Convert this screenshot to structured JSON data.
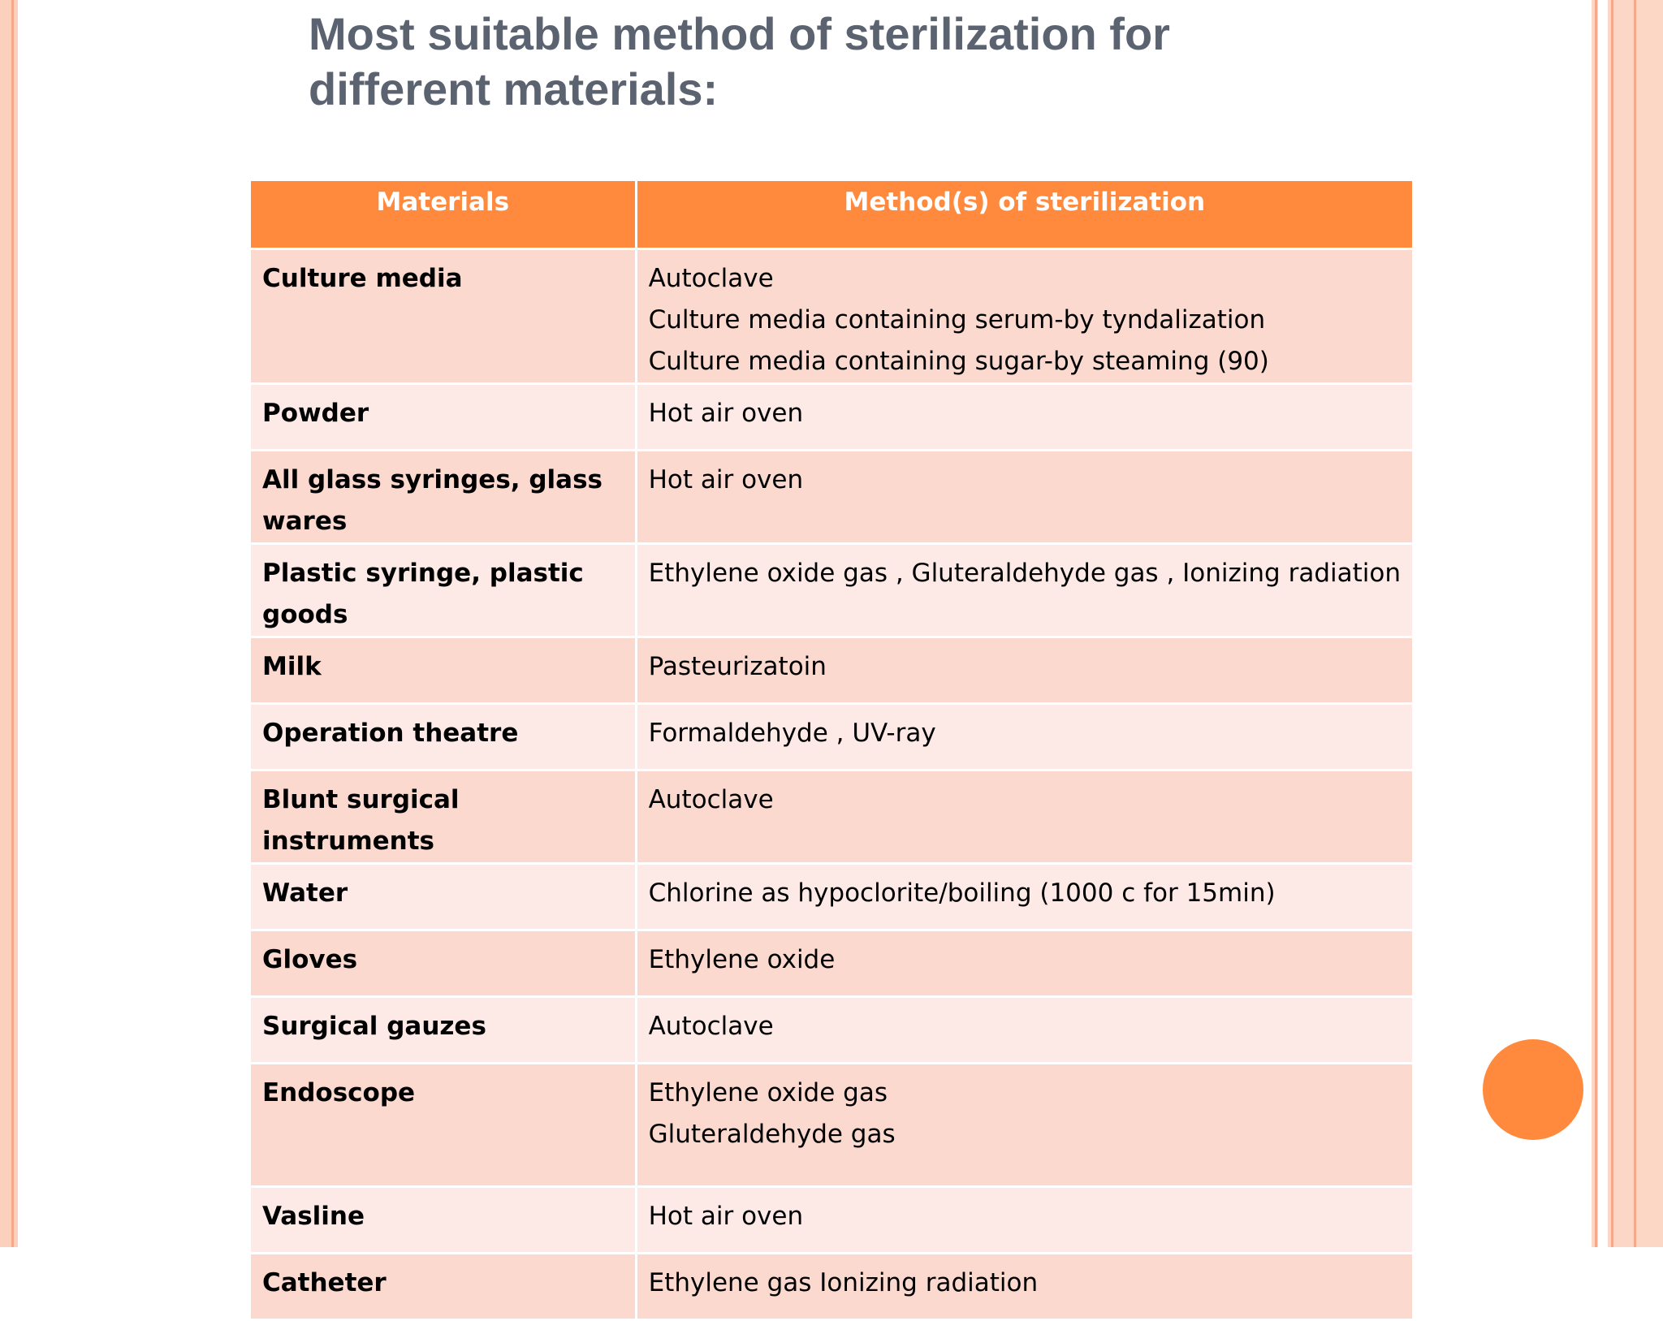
{
  "slide": {
    "title_lines": [
      "Most suitable method of sterilization for",
      "different materials:"
    ],
    "colors": {
      "header_bg": "#ff8a3d",
      "row_odd": "#fcd9cf",
      "row_even": "#fdeae7",
      "title": "#5c6370",
      "accent_circle": "#ff8a3d"
    }
  },
  "table": {
    "headers": [
      "Materials",
      "Method(s) of sterilization"
    ],
    "rows": [
      {
        "material": "Culture media",
        "methods": [
          "Autoclave",
          "Culture media containing serum-by tyndalization",
          "Culture media containing sugar-by steaming (90)"
        ]
      },
      {
        "material": "Powder",
        "methods": [
          "Hot air oven"
        ]
      },
      {
        "material": "All glass syringes, glass wares",
        "methods": [
          "Hot air oven"
        ]
      },
      {
        "material": "Plastic syringe, plastic goods",
        "methods": [
          "Ethylene oxide gas , Gluteraldehyde gas , Ionizing radiation"
        ]
      },
      {
        "material": "Milk",
        "methods": [
          "Pasteurizatoin"
        ]
      },
      {
        "material": "Operation theatre",
        "methods": [
          "Formaldehyde , UV-ray"
        ]
      },
      {
        "material": "Blunt surgical instruments",
        "methods": [
          "Autoclave"
        ]
      },
      {
        "material": "Water",
        "methods": [
          "Chlorine as hypoclorite/boiling (1000 c for 15min)"
        ]
      },
      {
        "material": "Gloves",
        "methods": [
          "Ethylene oxide"
        ]
      },
      {
        "material": "Surgical gauzes",
        "methods": [
          "Autoclave"
        ]
      },
      {
        "material": "Endoscope",
        "methods": [
          "Ethylene oxide gas",
          "Gluteraldehyde gas"
        ]
      },
      {
        "material": "Vasline",
        "methods": [
          "Hot air oven"
        ]
      },
      {
        "material": "Catheter",
        "methods": [
          "Ethylene gas Ionizing radiation"
        ]
      }
    ]
  }
}
